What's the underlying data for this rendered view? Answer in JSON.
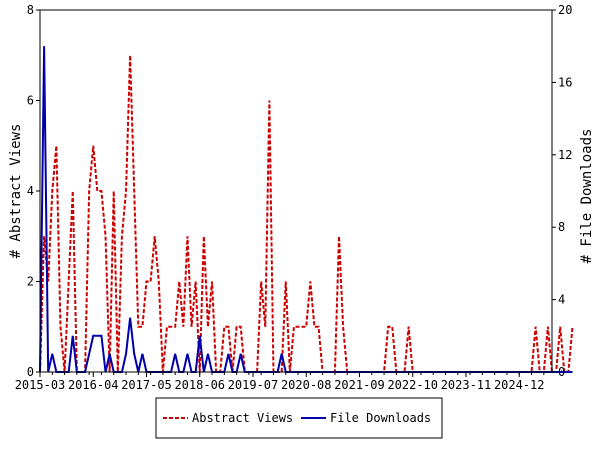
{
  "chart_data": {
    "type": "line",
    "x_start": "2015-03",
    "x_end": "2025-08",
    "x_tick_labels": [
      "2015-03",
      "2016-04",
      "2017-05",
      "2018-06",
      "2019-07",
      "2020-08",
      "2021-09",
      "2022-10",
      "2023-11",
      "2024-12"
    ],
    "y_left": {
      "label": "# Abstract Views",
      "range": [
        0,
        8
      ],
      "ticks": [
        0,
        2,
        4,
        6,
        8
      ]
    },
    "y_right": {
      "label": "# File Downloads",
      "range": [
        0,
        20
      ],
      "ticks": [
        0,
        4,
        8,
        12,
        16,
        20
      ]
    },
    "legend_position": "bottom",
    "grid": false,
    "series": [
      {
        "name": "Abstract Views",
        "axis": "left",
        "color": "#cc0000",
        "dash": "dashed",
        "values": [
          0,
          3,
          2,
          4,
          5,
          1,
          0,
          2,
          4,
          0,
          0,
          0,
          4,
          5,
          4,
          4,
          3,
          0,
          4,
          0,
          3,
          4,
          7,
          4,
          1,
          1,
          2,
          2,
          3,
          2,
          0,
          1,
          1,
          1,
          2,
          1,
          3,
          1,
          2,
          0,
          3,
          1,
          2,
          0,
          0,
          1,
          1,
          0,
          1,
          1,
          0,
          0,
          0,
          0,
          2,
          1,
          6,
          0,
          0,
          0,
          2,
          0,
          1,
          1,
          1,
          1,
          2,
          1,
          1,
          0,
          0,
          0,
          0,
          3,
          1,
          0,
          0,
          0,
          0,
          0,
          0,
          0,
          0,
          0,
          0,
          1,
          1,
          0,
          0,
          0,
          1,
          0,
          0,
          0,
          0,
          0,
          0,
          0,
          0,
          0,
          0,
          0,
          0,
          0,
          0,
          0,
          0,
          0,
          0,
          0,
          0,
          0,
          0,
          0,
          0,
          0,
          0,
          0,
          0,
          0,
          0,
          1,
          0,
          0,
          1,
          0,
          0,
          1,
          0,
          0,
          1
        ]
      },
      {
        "name": "File Downloads",
        "axis": "right",
        "color": "#0000aa",
        "dash": "solid",
        "values": [
          0,
          18,
          0,
          1,
          0,
          0,
          0,
          0,
          2,
          0,
          0,
          0,
          1,
          2,
          2,
          2,
          0,
          1,
          0,
          0,
          0,
          1,
          3,
          1,
          0,
          1,
          0,
          0,
          0,
          0,
          0,
          0,
          0,
          1,
          0,
          0,
          1,
          0,
          0,
          2,
          0,
          1,
          0,
          0,
          0,
          0,
          1,
          0,
          0,
          1,
          0,
          0,
          0,
          0,
          0,
          0,
          0,
          0,
          0,
          1,
          0,
          0,
          0,
          0,
          0,
          0,
          0,
          0,
          0,
          0,
          0,
          0,
          0,
          0,
          0,
          0,
          0,
          0,
          0,
          0,
          0,
          0,
          0,
          0,
          0,
          0,
          0,
          0,
          0,
          0,
          0,
          0,
          0,
          0,
          0,
          0,
          0,
          0,
          0,
          0,
          0,
          0,
          0,
          0,
          0,
          0,
          0,
          0,
          0,
          0,
          0,
          0,
          0,
          0,
          0,
          0,
          0,
          0,
          0,
          0,
          0,
          0,
          0,
          0,
          0,
          0,
          0,
          0,
          0,
          0,
          0
        ]
      }
    ]
  }
}
